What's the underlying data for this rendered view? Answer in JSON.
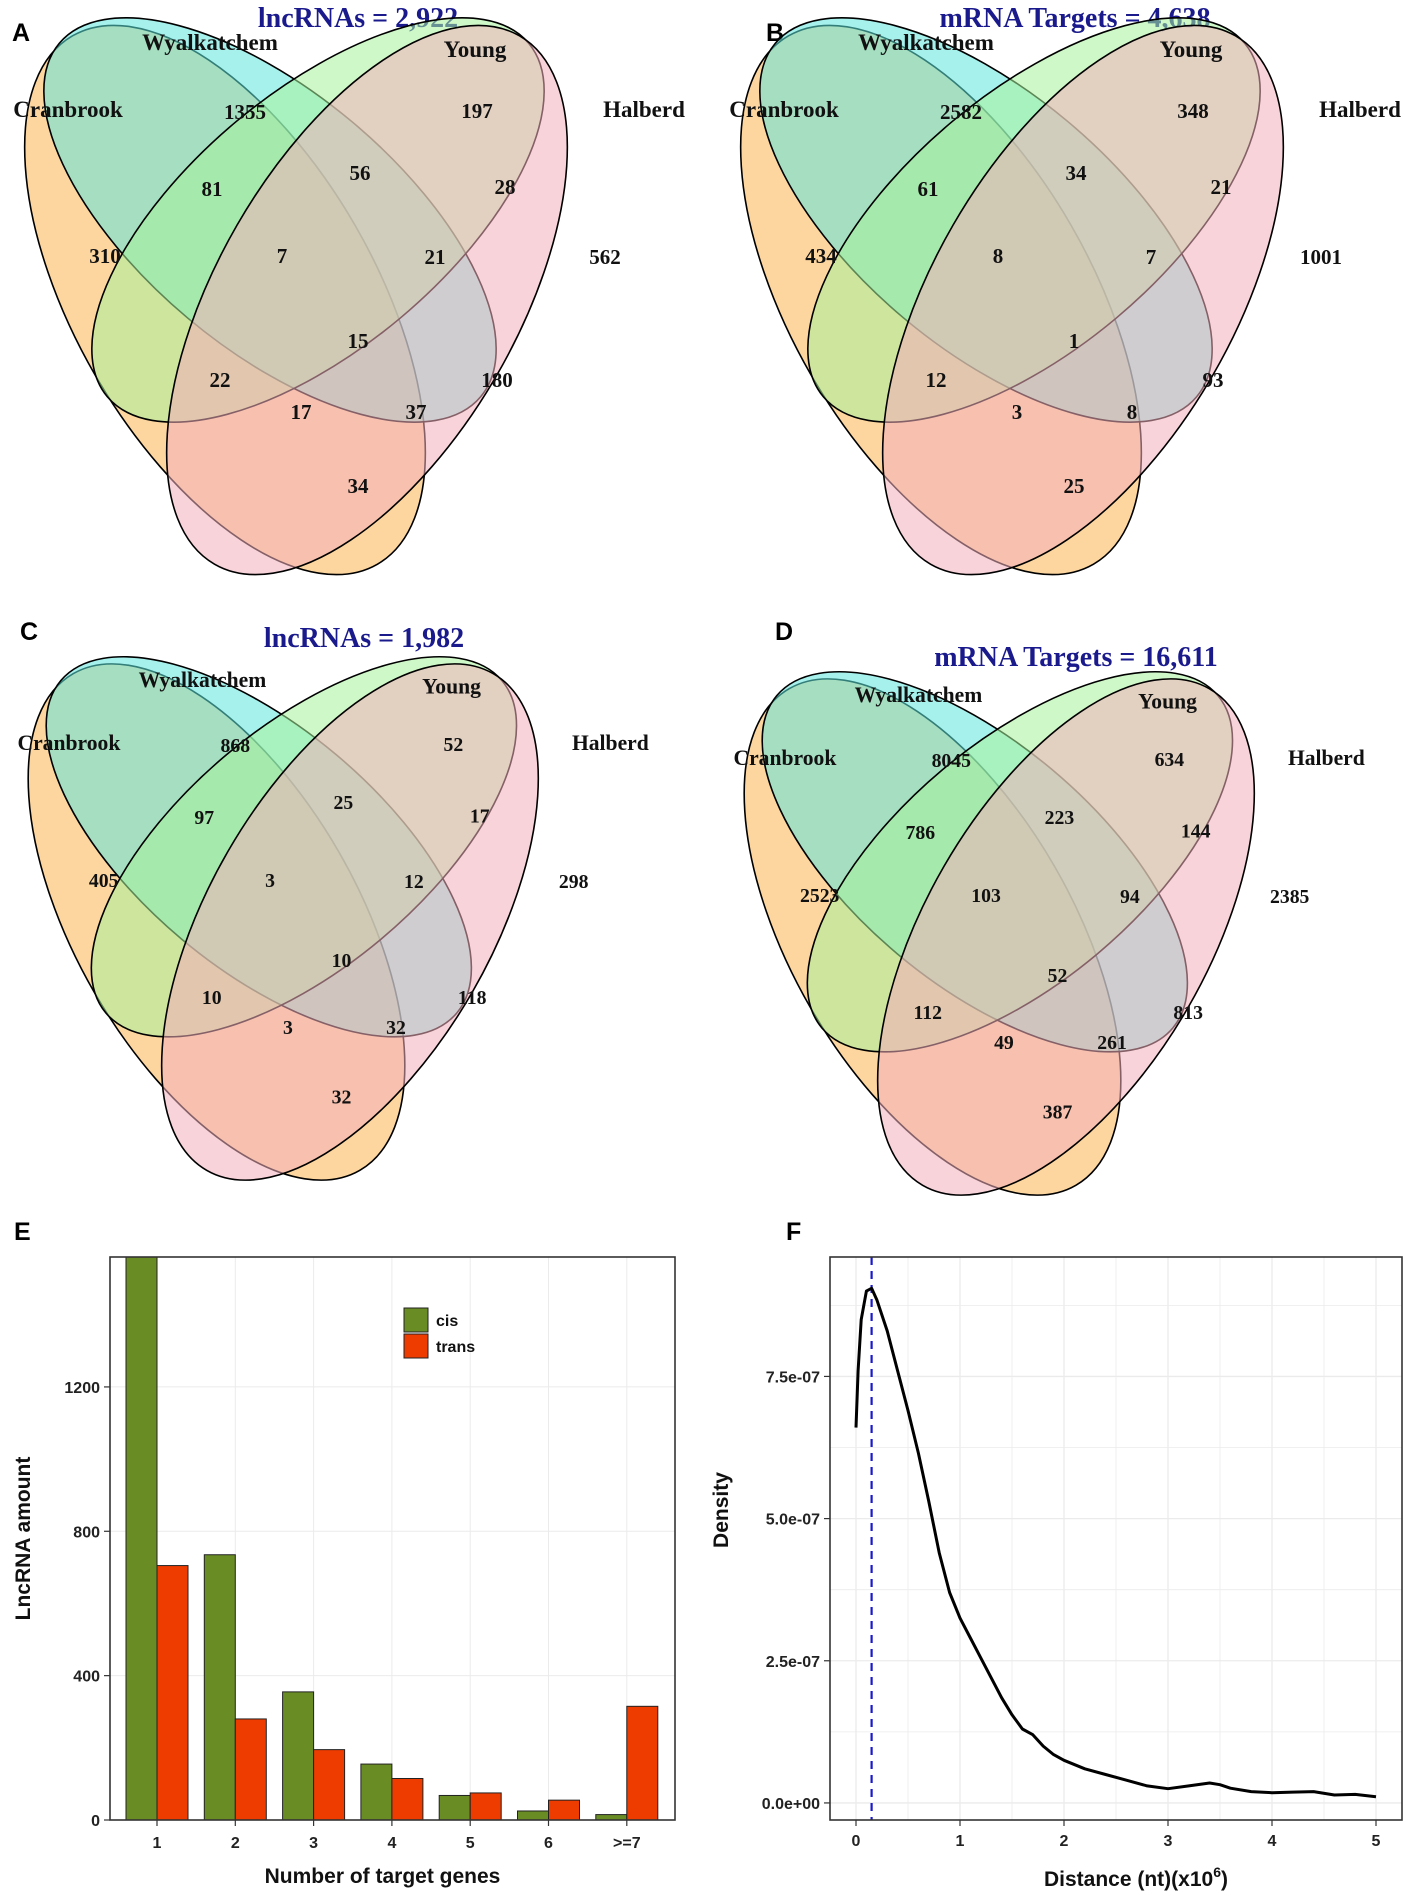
{
  "venn_labels": {
    "cranbrook": "Cranbrook",
    "wyalkatchem": "Wyalkatchem",
    "young": "Young",
    "halberd": "Halberd"
  },
  "colors": {
    "cranbrook": "#fbb450",
    "wyalkatchem": "#5ce6dc",
    "young": "#a8f29a",
    "halberd": "#f2aebc",
    "title": "#1a1a8c",
    "cis": "#6a8c24",
    "trans": "#ee3c00",
    "density_line": "#000000",
    "mode_line": "#1a1acc",
    "grid": "#ebebeb"
  },
  "chart_data": [
    {
      "type": "venn",
      "panel": "A",
      "title": "lncRNAs = 2,922",
      "sets": [
        "Cranbrook",
        "Wyalkatchem",
        "Young",
        "Halberd"
      ],
      "regions": {
        "C": "310",
        "W": "1355",
        "Y": "197",
        "H": "562",
        "CW": "81",
        "WY": "56",
        "YH": "28",
        "CWY": "7",
        "WYH": "21",
        "CWYH": "15",
        "CY": "22",
        "WH": "180",
        "CYH": "17",
        "CWH": "37",
        "CH": "34"
      }
    },
    {
      "type": "venn",
      "panel": "B",
      "title": "mRNA Targets = 4,638",
      "sets": [
        "Cranbrook",
        "Wyalkatchem",
        "Young",
        "Halberd"
      ],
      "regions": {
        "C": "434",
        "W": "2582",
        "Y": "348",
        "H": "1001",
        "CW": "61",
        "WY": "34",
        "YH": "21",
        "CWY": "8",
        "WYH": "7",
        "CWYH": "1",
        "CY": "12",
        "WH": "93",
        "CYH": "3",
        "CWH": "8",
        "CH": "25"
      }
    },
    {
      "type": "venn",
      "panel": "C",
      "title": "lncRNAs = 1,982",
      "sets": [
        "Cranbrook",
        "Wyalkatchem",
        "Young",
        "Halberd"
      ],
      "regions": {
        "C": "405",
        "W": "868",
        "Y": "52",
        "H": "298",
        "CW": "97",
        "WY": "25",
        "YH": "17",
        "CWY": "3",
        "WYH": "12",
        "CWYH": "10",
        "CY": "10",
        "WH": "118",
        "CYH": "3",
        "CWH": "32",
        "CH": "32"
      }
    },
    {
      "type": "venn",
      "panel": "D",
      "title": "mRNA Targets = 16,611",
      "sets": [
        "Cranbrook",
        "Wyalkatchem",
        "Young",
        "Halberd"
      ],
      "regions": {
        "C": "2523",
        "W": "8045",
        "Y": "634",
        "H": "2385",
        "CW": "786",
        "WY": "223",
        "YH": "144",
        "CWY": "103",
        "WYH": "94",
        "CWYH": "52",
        "CY": "112",
        "WH": "813",
        "CYH": "49",
        "CWH": "261",
        "CH": "387"
      }
    },
    {
      "type": "bar",
      "panel": "E",
      "categories": [
        "1",
        "2",
        "3",
        "4",
        "5",
        "6",
        ">=7"
      ],
      "series": [
        {
          "name": "cis",
          "values": [
            1560,
            735,
            355,
            155,
            68,
            25,
            15
          ]
        },
        {
          "name": "trans",
          "values": [
            705,
            280,
            195,
            115,
            75,
            55,
            315
          ]
        }
      ],
      "xlabel": "Number of target genes",
      "ylabel": "LncRNA amount",
      "ylim": [
        0,
        1560
      ],
      "yticks": [
        0,
        400,
        800,
        1200
      ],
      "grid": true,
      "legend": "top-right"
    },
    {
      "type": "line",
      "panel": "F",
      "x": [
        0,
        0.02,
        0.05,
        0.1,
        0.15,
        0.2,
        0.3,
        0.4,
        0.5,
        0.6,
        0.7,
        0.8,
        0.9,
        1.0,
        1.1,
        1.2,
        1.3,
        1.4,
        1.5,
        1.6,
        1.7,
        1.8,
        1.9,
        2.0,
        2.2,
        2.4,
        2.6,
        2.8,
        3.0,
        3.2,
        3.4,
        3.5,
        3.6,
        3.8,
        4.0,
        4.2,
        4.4,
        4.6,
        4.8,
        5.0
      ],
      "y": [
        6.6e-07,
        7.6e-07,
        8.5e-07,
        9e-07,
        9.05e-07,
        8.85e-07,
        8.3e-07,
        7.6e-07,
        6.9e-07,
        6.15e-07,
        5.3e-07,
        4.4e-07,
        3.7e-07,
        3.25e-07,
        2.9e-07,
        2.55e-07,
        2.2e-07,
        1.85e-07,
        1.55e-07,
        1.3e-07,
        1.2e-07,
        1e-07,
        8.5e-08,
        7.5e-08,
        6e-08,
        5e-08,
        4e-08,
        3e-08,
        2.5e-08,
        3e-08,
        3.5e-08,
        3.2e-08,
        2.6e-08,
        2e-08,
        1.8e-08,
        1.9e-08,
        2e-08,
        1.4e-08,
        1.5e-08,
        1.1e-08
      ],
      "mode_x": 0.15,
      "xlabel_main": "Distance (nt)(x10",
      "xlabel_sup": "6",
      "xlabel_end": ")",
      "ylabel": "Density",
      "xlim": [
        -0.25,
        5.25
      ],
      "ylim": [
        -3e-08,
        9.6e-07
      ],
      "xticks": [
        0,
        1,
        2,
        3,
        4,
        5
      ],
      "yticks": [
        0,
        2.5e-07,
        5e-07,
        7.5e-07
      ],
      "ytick_labels": [
        "0.0e+00",
        "2.5e-07",
        "5.0e-07",
        "7.5e-07"
      ],
      "grid": true
    }
  ]
}
